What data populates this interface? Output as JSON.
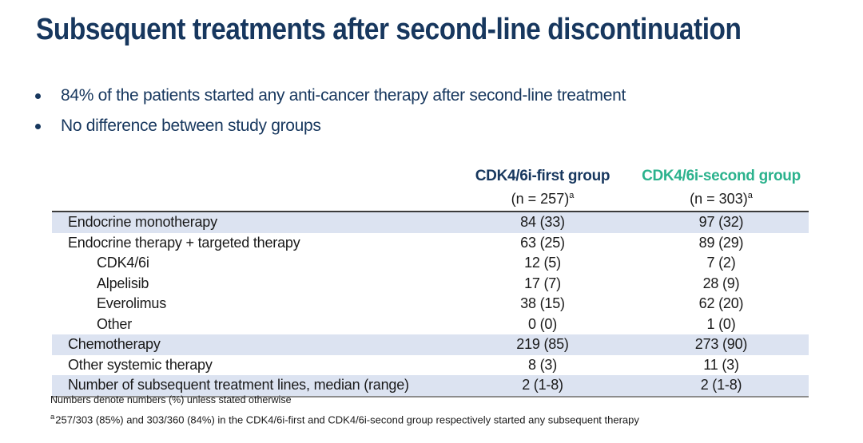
{
  "slide": {
    "title": "Subsequent treatments after second-line discontinuation",
    "bullets": [
      "84% of the patients started any anti-cancer therapy after second-line treatment",
      "No difference between study groups"
    ]
  },
  "table": {
    "columns": [
      {
        "label": "CDK4/6i-first group",
        "sub": "(n = 257)",
        "sup": "a"
      },
      {
        "label": "CDK4/6i-second group",
        "sub": "(n = 303)",
        "sup": "a"
      }
    ],
    "rows": [
      {
        "label": "Endocrine monotherapy",
        "col1": "84 (33)",
        "col2": "97 (32)",
        "highlight": true,
        "indent": false
      },
      {
        "label": "Endocrine therapy + targeted therapy",
        "col1": "63 (25)",
        "col2": "89 (29)",
        "highlight": false,
        "indent": false
      },
      {
        "label": "CDK4/6i",
        "col1": "12 (5)",
        "col2": "7 (2)",
        "highlight": false,
        "indent": true
      },
      {
        "label": "Alpelisib",
        "col1": "17 (7)",
        "col2": "28 (9)",
        "highlight": false,
        "indent": true
      },
      {
        "label": "Everolimus",
        "col1": "38 (15)",
        "col2": "62 (20)",
        "highlight": false,
        "indent": true
      },
      {
        "label": "Other",
        "col1": "0 (0)",
        "col2": "1 (0)",
        "highlight": false,
        "indent": true
      },
      {
        "label": "Chemotherapy",
        "col1": "219 (85)",
        "col2": "273 (90)",
        "highlight": true,
        "indent": false
      },
      {
        "label": "Other systemic therapy",
        "col1": "8 (3)",
        "col2": "11 (3)",
        "highlight": false,
        "indent": false
      },
      {
        "label": "Number of subsequent treatment lines, median (range)",
        "col1": "2 (1-8)",
        "col2": "2 (1-8)",
        "highlight": true,
        "indent": false
      }
    ]
  },
  "footnotes": [
    {
      "sup": "",
      "text": "Numbers denote numbers (%) unless stated otherwise"
    },
    {
      "sup": "a",
      "text": "257/303 (85%) and 303/360 (84%) in the CDK4/6i-first and CDK4/6i-second group respectively started any subsequent therapy"
    }
  ],
  "colors": {
    "title_navy": "#17375e",
    "accent_green": "#2bb28d",
    "row_highlight": "#dce3f1",
    "table_top_border": "#3b3b3b",
    "table_bottom_border": "#8c8c8c"
  }
}
